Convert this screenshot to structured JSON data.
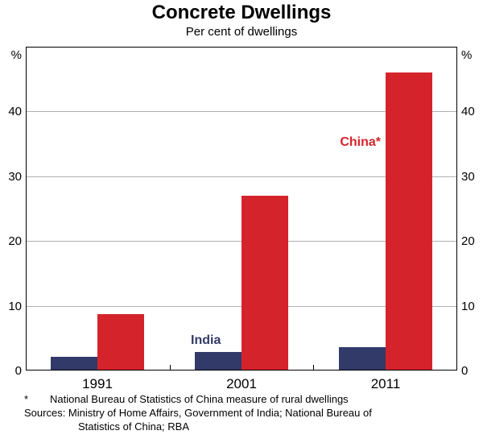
{
  "title": "Concrete Dwellings",
  "subtitle": "Per cent of dwellings",
  "axis": {
    "unit_left": "%",
    "unit_right": "%"
  },
  "chart_data": {
    "type": "bar",
    "title": "Concrete Dwellings",
    "subtitle": "Per cent of dwellings",
    "categories": [
      "1991",
      "2001",
      "2011"
    ],
    "series": [
      {
        "name": "India",
        "color": "#323a69",
        "values": [
          2.1,
          2.8,
          3.6
        ]
      },
      {
        "name": "China",
        "color": "#d5232b",
        "values": [
          8.7,
          27,
          46
        ]
      }
    ],
    "ylabel": "%",
    "ylim": [
      0,
      50
    ],
    "yticks": [
      0,
      10,
      20,
      30,
      40
    ],
    "grid": true,
    "legend_position": "inline-annotations"
  },
  "annotations": [
    {
      "text": "China*",
      "color": "#d5232b"
    },
    {
      "text": "India",
      "color": "#323a69"
    }
  ],
  "footnotes": {
    "marker": "*",
    "marker_text": "National Bureau of Statistics of China measure of rural dwellings",
    "sources_line1": "Sources: Ministry of Home Affairs, Government of India; National Bureau of",
    "sources_line2": "Statistics of China; RBA"
  }
}
